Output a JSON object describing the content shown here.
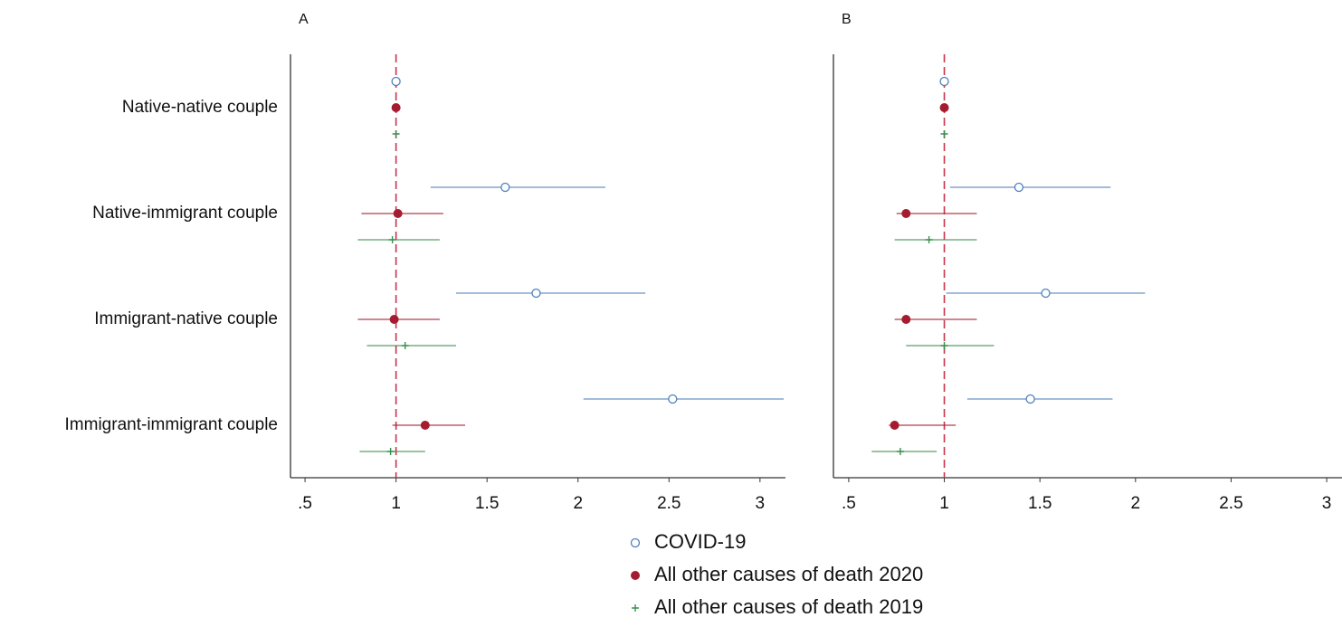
{
  "chart_data": [
    {
      "type": "forest",
      "title": "A",
      "categories": [
        "Native-native couple",
        "Native-immigrant couple",
        "Immigrant-native couple",
        "Immigrant-immigrant couple"
      ],
      "xlim": [
        0.42,
        3.14
      ],
      "xticks": [
        {
          "value": 0.5,
          "label": ".5"
        },
        1,
        1.5,
        2,
        2.5,
        3
      ],
      "refline": 1,
      "series": [
        {
          "name": "COVID-19",
          "color": "#4f81bd",
          "marker": "open-circle",
          "values": [
            1,
            1.6,
            1.77,
            2.52
          ],
          "lower": [
            1,
            1.19,
            1.33,
            2.03
          ],
          "upper": [
            1,
            2.15,
            2.37,
            3.13
          ]
        },
        {
          "name": "All other causes of death 2020",
          "color": "#a51c30",
          "marker": "filled-circle",
          "values": [
            1,
            1.01,
            0.99,
            1.16
          ],
          "lower": [
            1,
            0.81,
            0.79,
            0.98
          ],
          "upper": [
            1,
            1.26,
            1.24,
            1.38
          ]
        },
        {
          "name": "All other causes of death 2019",
          "color": "#3a8f4f",
          "marker": "plus",
          "values": [
            1,
            0.98,
            1.05,
            0.97
          ],
          "lower": [
            1,
            0.79,
            0.84,
            0.8
          ],
          "upper": [
            1,
            1.24,
            1.33,
            1.16
          ]
        }
      ]
    },
    {
      "type": "forest",
      "title": "B",
      "xlim": [
        0.42,
        3.08
      ],
      "xticks": [
        {
          "value": 0.5,
          "label": ".5"
        },
        1,
        1.5,
        2,
        2.5,
        3
      ],
      "refline": 1,
      "series": [
        {
          "values": [
            1,
            1.39,
            1.53,
            1.45
          ],
          "lower": [
            1,
            1.03,
            1.01,
            1.12
          ],
          "upper": [
            1,
            1.87,
            2.05,
            1.88
          ]
        },
        {
          "values": [
            1,
            0.8,
            0.8,
            0.74
          ],
          "lower": [
            1,
            0.75,
            0.74,
            0.71
          ],
          "upper": [
            1,
            1.17,
            1.17,
            1.06
          ]
        },
        {
          "values": [
            1,
            0.92,
            1.0,
            0.77
          ],
          "lower": [
            1,
            0.74,
            0.8,
            0.62
          ],
          "upper": [
            1,
            1.17,
            1.26,
            0.96
          ]
        }
      ]
    }
  ]
}
